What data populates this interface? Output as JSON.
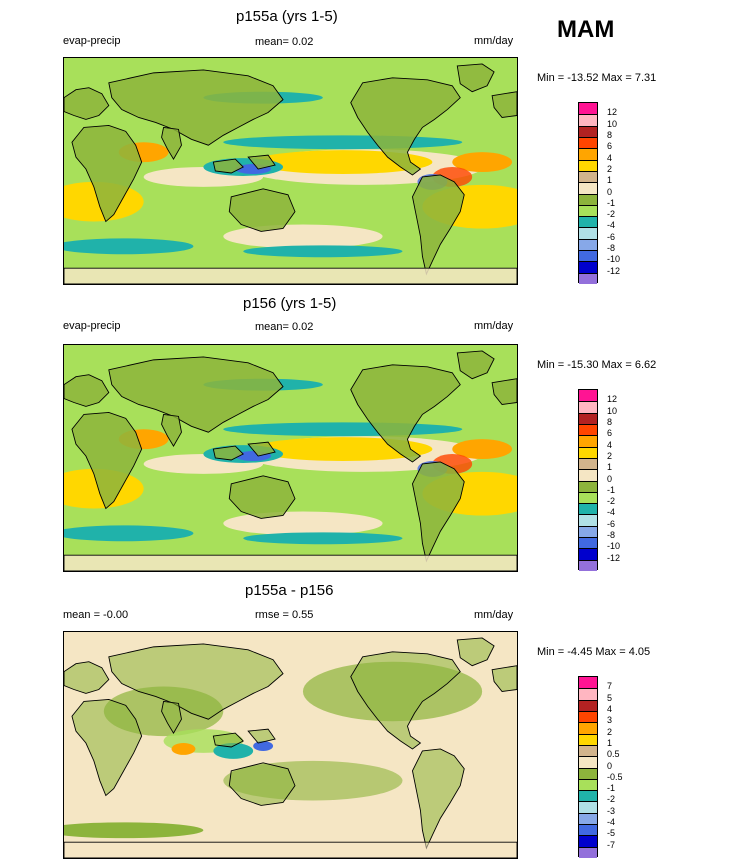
{
  "season_label": "MAM",
  "panels": [
    {
      "title": "p155a (yrs 1-5)",
      "left_label": "evap-precip",
      "center_label": "mean=  0.02",
      "units": "mm/day",
      "minmax": "Min = -13.52 Max =   7.31"
    },
    {
      "title": "p156 (yrs 1-5)",
      "left_label": "evap-precip",
      "center_label": "mean=  0.02",
      "units": "mm/day",
      "minmax": "Min = -15.30 Max =   6.62"
    },
    {
      "title": "p155a - p156",
      "left_label": "mean =  -0.00",
      "center_label": "rmse =   0.55",
      "units": "mm/day",
      "minmax": "Min =  -4.45 Max =   4.05"
    }
  ],
  "colorbars": [
    {
      "labels": [
        "12",
        "10",
        "8",
        "6",
        "4",
        "2",
        "1",
        "0",
        "-1",
        "-2",
        "-4",
        "-6",
        "-8",
        "-10",
        "-12"
      ],
      "colors": [
        "#ff1493",
        "#ffb6c1",
        "#b22222",
        "#ff4500",
        "#ffa500",
        "#ffd700",
        "#d2b48c",
        "#f5e6c4",
        "#8db43c",
        "#a8e05a",
        "#20b2aa",
        "#b0e0e6",
        "#87a8e8",
        "#4169e1",
        "#0000cd",
        "#9370db"
      ]
    },
    {
      "labels": [
        "12",
        "10",
        "8",
        "6",
        "4",
        "2",
        "1",
        "0",
        "-1",
        "-2",
        "-4",
        "-6",
        "-8",
        "-10",
        "-12"
      ],
      "colors": [
        "#ff1493",
        "#ffb6c1",
        "#b22222",
        "#ff4500",
        "#ffa500",
        "#ffd700",
        "#d2b48c",
        "#f5e6c4",
        "#8db43c",
        "#a8e05a",
        "#20b2aa",
        "#b0e0e6",
        "#87a8e8",
        "#4169e1",
        "#0000cd",
        "#9370db"
      ]
    },
    {
      "labels": [
        "7",
        "5",
        "4",
        "3",
        "2",
        "1",
        "0.5",
        "0",
        "-0.5",
        "-1",
        "-2",
        "-3",
        "-4",
        "-5",
        "-7"
      ],
      "colors": [
        "#ff1493",
        "#ffb6c1",
        "#b22222",
        "#ff4500",
        "#ffa500",
        "#ffd700",
        "#d2b48c",
        "#f5e6c4",
        "#8db43c",
        "#a8e05a",
        "#20b2aa",
        "#b0e0e6",
        "#87a8e8",
        "#4169e1",
        "#0000cd",
        "#9370db"
      ]
    }
  ],
  "palette": {
    "ocean_base": "#a8e05a",
    "land_base": "#8db43c",
    "pos_low": "#f5e6c4",
    "pos_mid": "#ffd700",
    "pos_high": "#ffa500",
    "pos_max": "#ff4500",
    "neg_mid": "#20b2aa",
    "neg_high": "#4169e1",
    "coast": "#000000"
  }
}
